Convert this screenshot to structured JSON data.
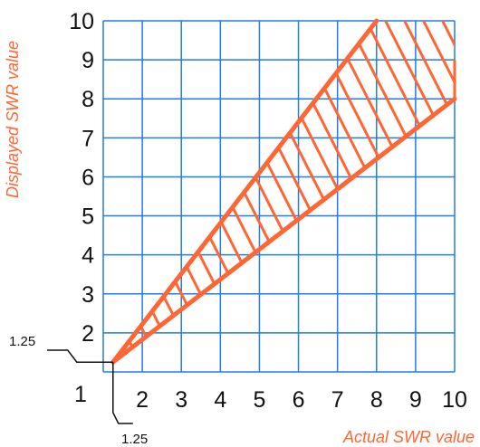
{
  "chart_data": {
    "type": "area",
    "title": "",
    "xlabel": "Actual SWR value",
    "ylabel": "Displayed SWR value",
    "xlim": [
      1,
      10
    ],
    "ylim": [
      1,
      10
    ],
    "x_ticks": [
      "1",
      "2",
      "3",
      "4",
      "5",
      "6",
      "7",
      "8",
      "9",
      "10"
    ],
    "y_ticks": [
      "1",
      "2",
      "3",
      "4",
      "5",
      "6",
      "7",
      "8",
      "9",
      "10"
    ],
    "grid": true,
    "hatched_region": true,
    "series": [
      {
        "x": [
          1.25,
          8
        ],
        "y": [
          1.25,
          10
        ]
      },
      {
        "x": [
          1.25,
          10
        ],
        "y": [
          1.25,
          8
        ]
      }
    ],
    "annotations": [
      {
        "text": "1.25",
        "x": 1.25,
        "y": 1.25,
        "axis": "y"
      },
      {
        "text": "1.25",
        "x": 1.25,
        "y": 1.25,
        "axis": "x"
      }
    ],
    "colors": {
      "grid": "#1f7ee0",
      "region": "#ff6633",
      "axis_title": "#ff6633",
      "text": "#111111"
    }
  }
}
